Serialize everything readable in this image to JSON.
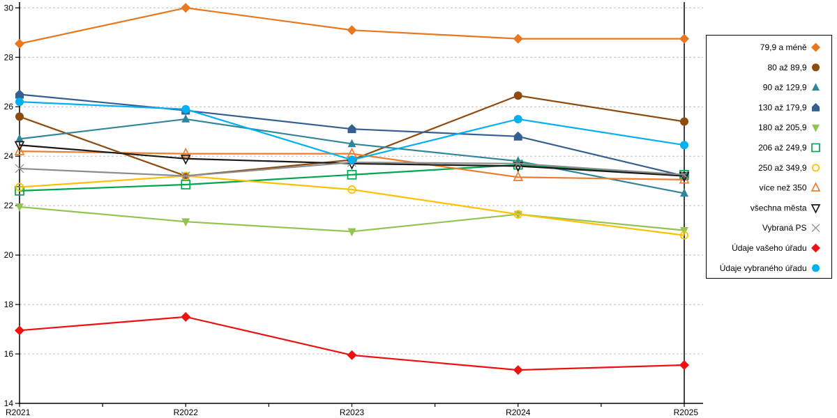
{
  "chart_data": {
    "type": "line",
    "title": "",
    "xlabel": "",
    "ylabel": "",
    "x_labels": [
      "R2021",
      "R2022",
      "R2023",
      "R2024",
      "R2025"
    ],
    "ylim": [
      14,
      30
    ],
    "y_ticks": [
      14,
      16,
      18,
      20,
      22,
      24,
      26,
      28,
      30
    ],
    "grid": "horizontal-dashed",
    "grid_color": "#bfbfbf",
    "axis_color": "#000000",
    "legend_position": "right",
    "series": [
      {
        "name": "79,9 a méně",
        "color": "#e8771e",
        "marker": "diamond",
        "fill": "solid",
        "values": [
          28.55,
          30.0,
          29.1,
          28.75,
          28.75
        ]
      },
      {
        "name": "80 až 89,9",
        "color": "#8e4b10",
        "marker": "circle",
        "fill": "solid",
        "values": [
          25.6,
          23.2,
          23.85,
          26.45,
          25.4
        ]
      },
      {
        "name": "90 až 129,9",
        "color": "#31859b",
        "marker": "triangle-up",
        "fill": "solid",
        "values": [
          24.7,
          25.5,
          24.5,
          23.8,
          22.5
        ]
      },
      {
        "name": "130 až 179,9",
        "color": "#365f91",
        "marker": "house",
        "fill": "solid",
        "values": [
          26.5,
          25.85,
          25.1,
          24.8,
          23.2
        ]
      },
      {
        "name": "180 až 205,9",
        "color": "#92c353",
        "marker": "triangle-down",
        "fill": "solid",
        "values": [
          21.95,
          21.35,
          20.95,
          21.65,
          21.0
        ]
      },
      {
        "name": "206 až 249,9",
        "color": "#00a550",
        "marker": "square",
        "fill": "open",
        "values": [
          22.6,
          22.85,
          23.25,
          23.65,
          23.25
        ]
      },
      {
        "name": "250 až 349,9",
        "color": "#ffc000",
        "marker": "circle",
        "fill": "open",
        "values": [
          22.75,
          23.2,
          22.65,
          21.65,
          20.8
        ]
      },
      {
        "name": "více než 350",
        "color": "#ed7d31",
        "marker": "triangle-up",
        "fill": "open",
        "values": [
          24.2,
          24.1,
          24.1,
          23.15,
          23.05
        ]
      },
      {
        "name": "všechna města",
        "color": "#1a1a1a",
        "marker": "triangle-down",
        "fill": "open",
        "values": [
          24.45,
          23.9,
          23.7,
          23.6,
          23.2
        ]
      },
      {
        "name": "Vybraná PS",
        "color": "#8c8c8c",
        "marker": "x",
        "fill": "open",
        "values": [
          23.5,
          23.2,
          23.75,
          23.7,
          23.25
        ]
      },
      {
        "name": "Údaje vašeho úřadu",
        "color": "#ee1111",
        "marker": "diamond",
        "fill": "solid",
        "values": [
          16.95,
          17.5,
          15.95,
          15.35,
          15.55
        ]
      },
      {
        "name": "Údaje vybraného úřadu",
        "color": "#00b0f0",
        "marker": "circle",
        "fill": "solid",
        "values": [
          26.2,
          25.9,
          23.85,
          25.5,
          24.45
        ]
      }
    ]
  }
}
